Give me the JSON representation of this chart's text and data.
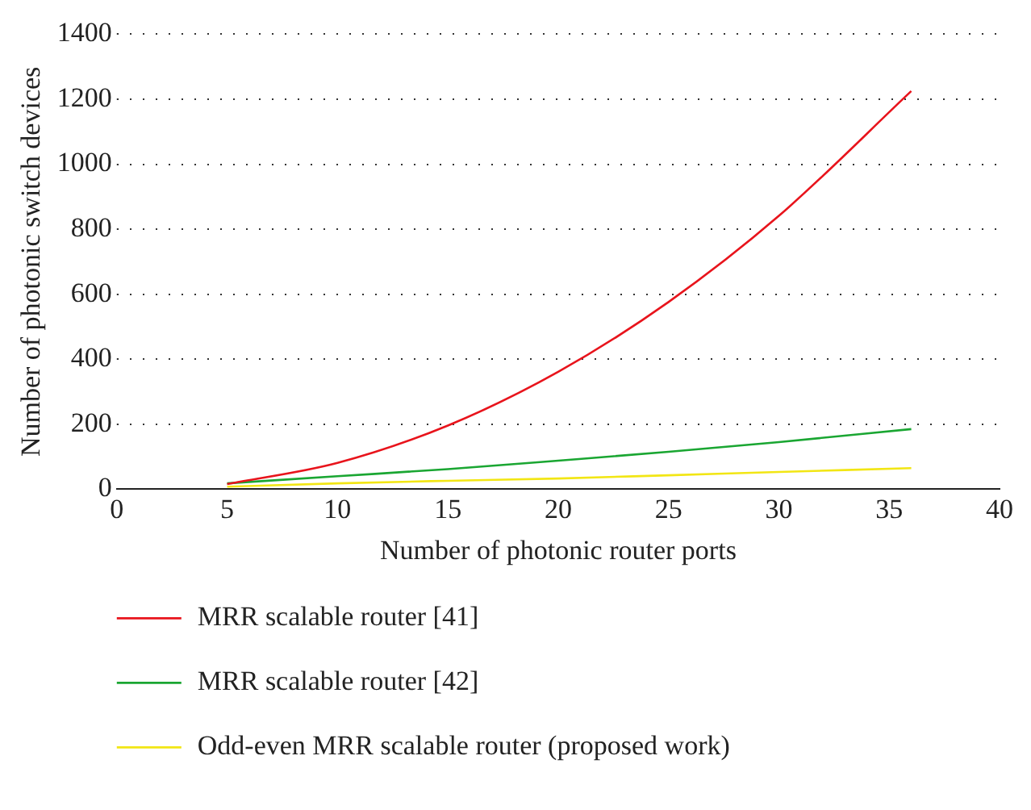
{
  "chart_data": {
    "type": "line",
    "xlabel": "Number of photonic router ports",
    "ylabel": "Number of photonic switch devices",
    "x": [
      5,
      10,
      15,
      20,
      25,
      30,
      36
    ],
    "series": [
      {
        "name": "MRR scalable router [41]",
        "color": "#e8141c",
        "values": [
          16,
          81,
          196,
          361,
          576,
          841,
          1225
        ]
      },
      {
        "name": "MRR scalable router [42]",
        "color": "#1aa632",
        "values": [
          18,
          40,
          62,
          88,
          115,
          145,
          185
        ]
      },
      {
        "name": "Odd-even MRR scalable router (proposed work)",
        "color": "#f2e614",
        "values": [
          8,
          18,
          26,
          33,
          43,
          53,
          65
        ]
      }
    ],
    "xlim": [
      0,
      40
    ],
    "xticks": [
      0,
      5,
      10,
      15,
      20,
      25,
      30,
      35,
      40
    ],
    "ylim": [
      0,
      1400
    ],
    "yticks": [
      0,
      200,
      400,
      600,
      800,
      1000,
      1200,
      1400
    ],
    "grid": "y",
    "legend": "bottom",
    "marker": "none",
    "line_style": "solid"
  }
}
